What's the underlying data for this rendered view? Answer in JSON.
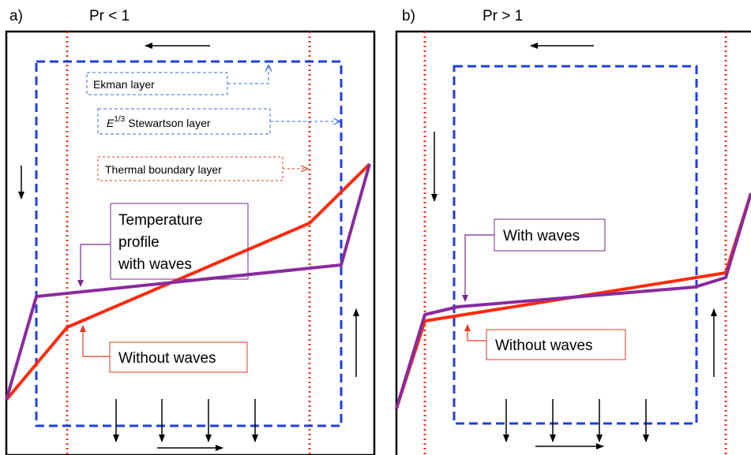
{
  "panel_a": {
    "tag": "a)",
    "condition": "Pr < 1",
    "labels": {
      "ekman": "Ekman layer",
      "stewartson_exponent_base": "E",
      "stewartson_exponent": "1/3",
      "stewartson_text": "Stewartson layer",
      "thermal": "Thermal boundary layer",
      "temp_line1": "Temperature",
      "temp_line2": "profile",
      "temp_line3": "with waves",
      "without": "Without waves"
    }
  },
  "panel_b": {
    "tag": "b)",
    "condition": "Pr > 1",
    "labels": {
      "with": "With waves",
      "without": "Without waves"
    }
  },
  "colors": {
    "frame": "#000000",
    "stewartson_blue": "#1f3fe0",
    "thermal_red": "#e8391d",
    "profile_purple": "#8a2a9e",
    "profile_red": "#ff2a0a",
    "label_blue": "#3a6ae8",
    "label_red": "#e8391d",
    "label_purple": "#7a2a8e"
  }
}
